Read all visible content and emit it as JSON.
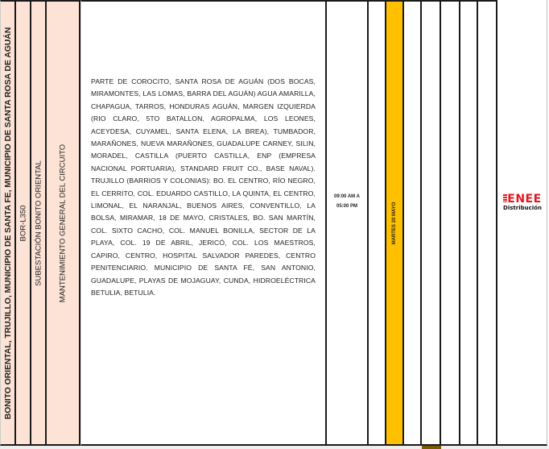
{
  "schedule_row": {
    "region": "BONITO ORIENTAL, TRUJILLO, MUNICIPIO DE SANTA FE, MUNICIPIO DE SANTA ROSA DE AGUÁN",
    "circuit": "BOR-L350",
    "substation": "SUBESTACIÓN BONITO ORIENTAL",
    "work_description": "MANTENIMIENTO GENERAL DEL CIRCUITO",
    "affected_areas": "PARTE DE COROCITO, SANTA ROSA DE AGUÁN (DOS BOCAS, MIRAMONTES, LAS LOMAS, BARRA DEL AGUÁN) AGUA AMARILLA, CHAPAGUA, TARROS, HONDURAS AGUÁN, MARGEN IZQUIERDA (RIO CLARO, 5TO BATALLON, AGROPALMA, LOS LEONES, ACEYDESA, CUYAMEL, SANTA ELENA, LA BREA), TUMBADOR, MARAÑONES, NUEVA MARAÑONES, GUADALUPE CARNEY, SILIN, MORADEL, CASTILLA (PUERTO CASTILLA, ENP (EMPRESA NACIONAL PORTUARIA), STANDARD FRUIT CO., BASE NAVAL). TRUJILLO (BARRIOS Y COLONIAS): BO. EL CENTRO, RÍO NEGRO, EL CERRITO, COL. EDUARDO CASTILLO, LA QUINTA, EL CENTRO, LIMONAL, EL NARANJAL, BUENOS AIRES, CONVENTILLO, LA BOLSA, MIRAMAR, 18 DE MAYO, CRISTALES, BO. SAN MARTÍN, COL. SIXTO CACHO, COL. MANUEL BONILLA, SECTOR DE LA PLAYA, COL. 19 DE ABRIL, JERICÓ, COL. LOS MAESTROS, CAPIRO, CENTRO, HOSPITAL SALVADOR PAREDES, CENTRO PENITENCIARIO. MUNICIPIO DE SANTA FÉ, SAN ANTONIO, GUADALUPE, PLAYAS DE MOJAGUAY, CUNDA, HIDROELÉCTRICA BETULIA, BETULIA.",
    "time_start": "09:00 AM A",
    "time_end": "05:00 PM",
    "date": "MARTES 20 MAYO"
  },
  "logo": {
    "brand": "ENEE",
    "subtitle": "Distribución",
    "icon": "enee-logo-icon"
  },
  "colors": {
    "peach": "#fde3d6",
    "highlight_yellow": "#ffc000",
    "logo_red": "#e3171c"
  }
}
